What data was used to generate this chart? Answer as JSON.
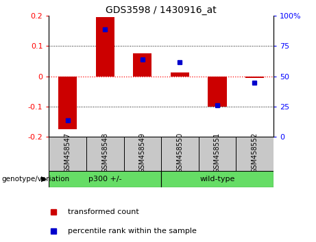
{
  "title": "GDS3598 / 1430916_at",
  "samples": [
    "GSM458547",
    "GSM458548",
    "GSM458549",
    "GSM458550",
    "GSM458551",
    "GSM458552"
  ],
  "red_bars": [
    -0.175,
    0.195,
    0.075,
    0.012,
    -0.1,
    -0.005
  ],
  "blue_dots": [
    -0.145,
    0.155,
    0.055,
    0.047,
    -0.095,
    -0.022
  ],
  "ylim": [
    -0.2,
    0.2
  ],
  "yticks_left": [
    -0.2,
    -0.1,
    0.0,
    0.1,
    0.2
  ],
  "ytick_labels_left": [
    "-0.2",
    "-0.1",
    "0",
    "0.1",
    "0.2"
  ],
  "yticks_right": [
    0,
    25,
    50,
    75,
    100
  ],
  "ytick_labels_right": [
    "0",
    "25",
    "50",
    "75",
    "100%"
  ],
  "group1_label": "p300 +/-",
  "group2_label": "wild-type",
  "group_label_prefix": "genotype/variation",
  "bar_color": "#CC0000",
  "dot_color": "#0000CC",
  "bar_width": 0.5,
  "legend_red": "transformed count",
  "legend_blue": "percentile rank within the sample",
  "background_plot": "#FFFFFF",
  "sample_box_color": "#C8C8C8",
  "group_box_color": "#66DD66",
  "hline_color": "#FF0000",
  "title_fontsize": 10,
  "axis_fontsize": 8,
  "sample_fontsize": 7,
  "group_fontsize": 8,
  "legend_fontsize": 8
}
